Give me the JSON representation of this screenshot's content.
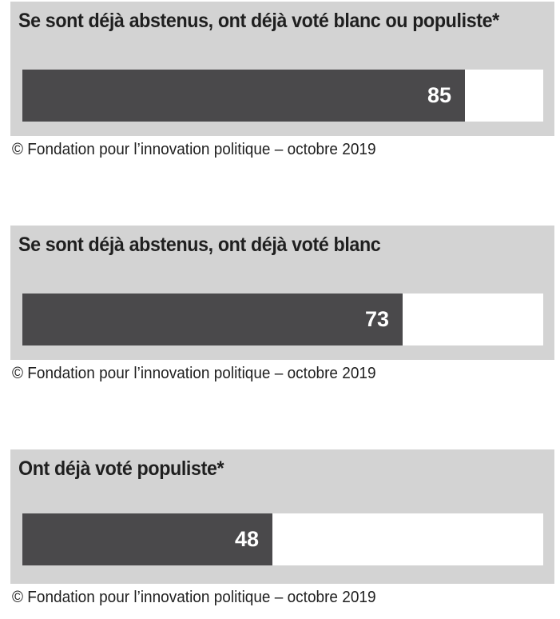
{
  "chart_data": [
    {
      "type": "bar",
      "title": "Se sont déjà abstenus, ont déjà voté blanc ou populiste*",
      "values": [
        85
      ],
      "ylim": [
        0,
        100
      ],
      "source": "© Fondation pour l’innovation politique – octobre 2019"
    },
    {
      "type": "bar",
      "title": "Se sont déjà abstenus, ont déjà voté blanc",
      "values": [
        73
      ],
      "ylim": [
        0,
        100
      ],
      "source": "© Fondation pour l’innovation politique – octobre 2019"
    },
    {
      "type": "bar",
      "title": "Ont déjà voté populiste*",
      "values": [
        48
      ],
      "ylim": [
        0,
        100
      ],
      "source": "© Fondation pour l’innovation politique – octobre 2019"
    }
  ],
  "colors": {
    "panel_background": "#d3d3d3",
    "bar_fill": "#4a494b",
    "track": "#ffffff",
    "value_text": "#ffffff",
    "text": "#1f1f1f"
  }
}
